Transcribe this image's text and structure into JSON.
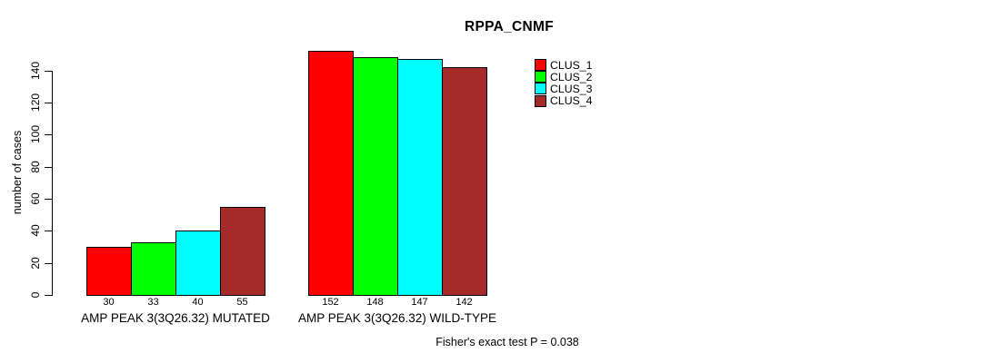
{
  "chart_data": {
    "type": "bar",
    "title": "RPPA_CNMF",
    "ylabel": "number of cases",
    "xlabel": "",
    "categories": [
      "AMP PEAK 3(3Q26.32) MUTATED",
      "AMP PEAK 3(3Q26.32) WILD-TYPE"
    ],
    "series": [
      {
        "name": "CLUS_1",
        "color": "#FF0000",
        "values": [
          30,
          152
        ]
      },
      {
        "name": "CLUS_2",
        "color": "#00FF00",
        "values": [
          33,
          148
        ]
      },
      {
        "name": "CLUS_3",
        "color": "#00FFFF",
        "values": [
          40,
          147
        ]
      },
      {
        "name": "CLUS_4",
        "color": "#A52A2A",
        "values": [
          55,
          142
        ]
      }
    ],
    "yticks": [
      0,
      20,
      40,
      60,
      80,
      100,
      120,
      140
    ],
    "ylim": [
      0,
      140
    ],
    "bar_value_labels": true,
    "grid": false,
    "legend_position": "top-right",
    "annotation": "Fisher's exact test P = 0.038"
  }
}
